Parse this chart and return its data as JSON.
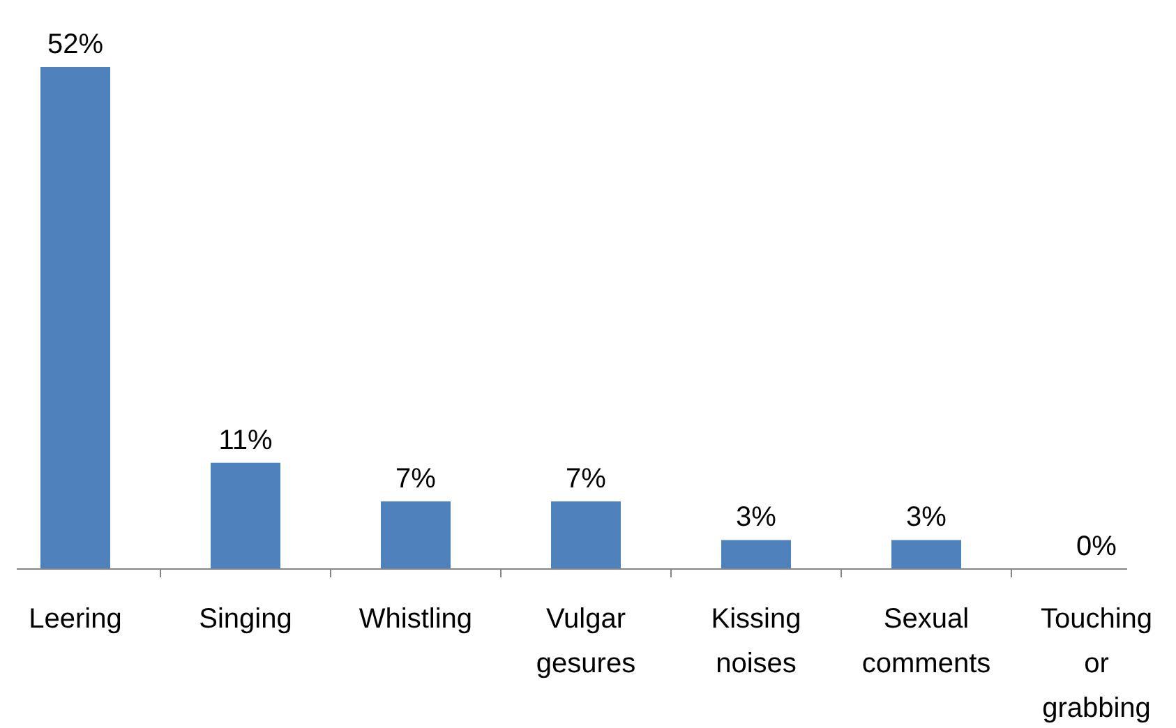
{
  "chart_data": {
    "type": "bar",
    "categories": [
      "Leering",
      "Singing",
      "Whistling",
      "Vulgar gesures",
      "Kissing noises",
      "Sexual comments",
      "Touching or grabbing"
    ],
    "values": [
      52,
      11,
      7,
      7,
      3,
      3,
      0
    ],
    "value_labels": [
      "52%",
      "11%",
      "7%",
      "7%",
      "3%",
      "3%",
      "0%"
    ],
    "color": "#4f81bd"
  }
}
